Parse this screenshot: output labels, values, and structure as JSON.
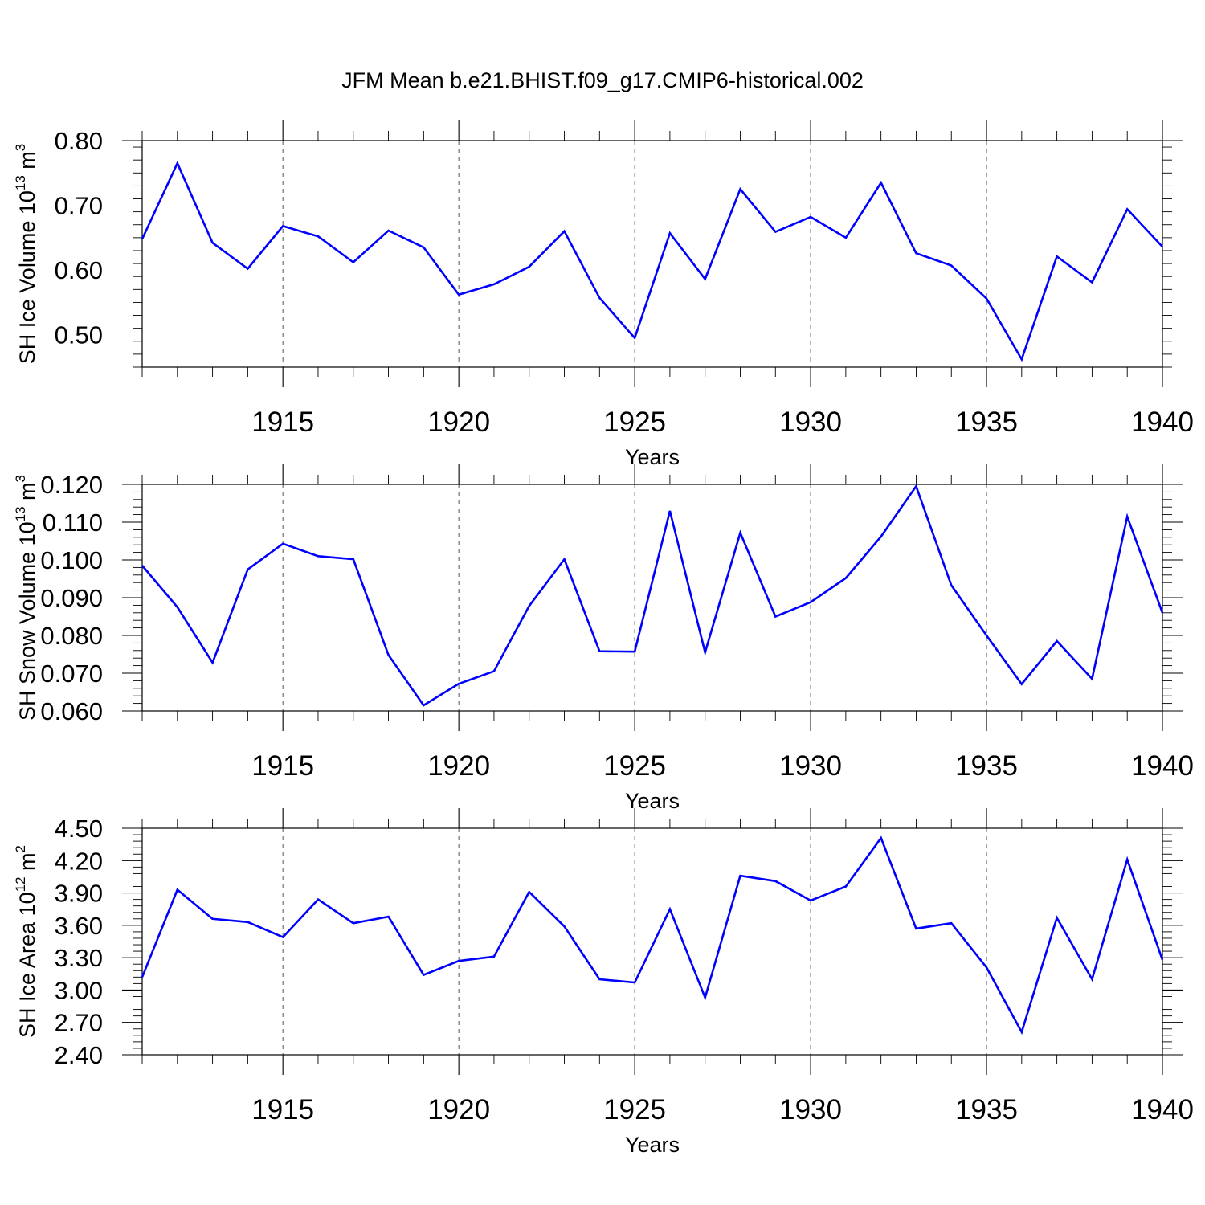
{
  "figure": {
    "title": "JFM Mean b.e21.BHIST.f09_g17.CMIP6-historical.002"
  },
  "colors": {
    "series": "#0000ff",
    "axes": "#000000",
    "grid": "#555555"
  },
  "chart_data": [
    {
      "type": "line",
      "ylabel_main": "SH Ice Volume 10",
      "ylabel_exp": "13",
      "ylabel_unit": " m",
      "ylabel_unit_exp": "3",
      "xlabel": "Years",
      "xlim": [
        1911,
        1940
      ],
      "ylim": [
        0.45,
        0.8
      ],
      "yticks": [
        0.5,
        0.6,
        0.7,
        0.8
      ],
      "ytick_labels": [
        "0.50",
        "0.60",
        "0.70",
        "0.80"
      ],
      "xticks": [
        1915,
        1920,
        1925,
        1930,
        1935,
        1940
      ],
      "xtick_labels": [
        "1915",
        "1920",
        "1925",
        "1930",
        "1935",
        "1940"
      ],
      "grid": "dashed vertical lines at major x ticks",
      "x": [
        1911,
        1912,
        1913,
        1914,
        1915,
        1916,
        1917,
        1918,
        1919,
        1920,
        1921,
        1922,
        1923,
        1924,
        1925,
        1926,
        1927,
        1928,
        1929,
        1930,
        1931,
        1932,
        1933,
        1934,
        1935,
        1936,
        1937,
        1938,
        1939,
        1940
      ],
      "values": [
        0.648,
        0.765,
        0.642,
        0.602,
        0.668,
        0.652,
        0.612,
        0.661,
        0.635,
        0.562,
        0.578,
        0.605,
        0.66,
        0.557,
        0.495,
        0.657,
        0.586,
        0.725,
        0.659,
        0.682,
        0.65,
        0.735,
        0.626,
        0.607,
        0.556,
        0.462,
        0.621,
        0.581,
        0.694,
        0.636
      ]
    },
    {
      "type": "line",
      "ylabel_main": "SH Snow Volume 10",
      "ylabel_exp": "13",
      "ylabel_unit": " m",
      "ylabel_unit_exp": "3",
      "xlabel": "Years",
      "xlim": [
        1911,
        1940
      ],
      "ylim": [
        0.06,
        0.12
      ],
      "yticks": [
        0.06,
        0.07,
        0.08,
        0.09,
        0.1,
        0.11,
        0.12
      ],
      "ytick_labels": [
        "0.060",
        "0.070",
        "0.080",
        "0.090",
        "0.100",
        "0.110",
        "0.120"
      ],
      "xticks": [
        1915,
        1920,
        1925,
        1930,
        1935,
        1940
      ],
      "xtick_labels": [
        "1915",
        "1920",
        "1925",
        "1930",
        "1935",
        "1940"
      ],
      "grid": "dashed vertical lines at major x ticks",
      "x": [
        1911,
        1912,
        1913,
        1914,
        1915,
        1916,
        1917,
        1918,
        1919,
        1920,
        1921,
        1922,
        1923,
        1924,
        1925,
        1926,
        1927,
        1928,
        1929,
        1930,
        1931,
        1932,
        1933,
        1934,
        1935,
        1936,
        1937,
        1938,
        1939,
        1940
      ],
      "values": [
        0.0985,
        0.0875,
        0.0728,
        0.0975,
        0.1043,
        0.101,
        0.1002,
        0.0748,
        0.0615,
        0.0672,
        0.0705,
        0.0878,
        0.1002,
        0.0758,
        0.0757,
        0.113,
        0.0755,
        0.1072,
        0.085,
        0.0888,
        0.0952,
        0.1062,
        0.1195,
        0.0933,
        0.08,
        0.0671,
        0.0785,
        0.0685,
        0.1115,
        0.086
      ]
    },
    {
      "type": "line",
      "ylabel_main": "SH Ice Area 10",
      "ylabel_exp": "12",
      "ylabel_unit": " m",
      "ylabel_unit_exp": "2",
      "xlabel": "Years",
      "xlim": [
        1911,
        1940
      ],
      "ylim": [
        2.4,
        4.5
      ],
      "yticks": [
        2.4,
        2.7,
        3.0,
        3.3,
        3.6,
        3.9,
        4.2,
        4.5
      ],
      "ytick_labels": [
        "2.40",
        "2.70",
        "3.00",
        "3.30",
        "3.60",
        "3.90",
        "4.20",
        "4.50"
      ],
      "xticks": [
        1915,
        1920,
        1925,
        1930,
        1935,
        1940
      ],
      "xtick_labels": [
        "1915",
        "1920",
        "1925",
        "1930",
        "1935",
        "1940"
      ],
      "grid": "dashed vertical lines at major x ticks",
      "x": [
        1911,
        1912,
        1913,
        1914,
        1915,
        1916,
        1917,
        1918,
        1919,
        1920,
        1921,
        1922,
        1923,
        1924,
        1925,
        1926,
        1927,
        1928,
        1929,
        1930,
        1931,
        1932,
        1933,
        1934,
        1935,
        1936,
        1937,
        1938,
        1939,
        1940
      ],
      "values": [
        3.12,
        3.93,
        3.66,
        3.63,
        3.49,
        3.84,
        3.62,
        3.68,
        3.14,
        3.27,
        3.31,
        3.91,
        3.59,
        3.1,
        3.07,
        3.75,
        2.93,
        4.06,
        4.01,
        3.83,
        3.96,
        4.41,
        3.57,
        3.62,
        3.21,
        2.61,
        3.67,
        3.1,
        4.21,
        3.28
      ]
    }
  ]
}
